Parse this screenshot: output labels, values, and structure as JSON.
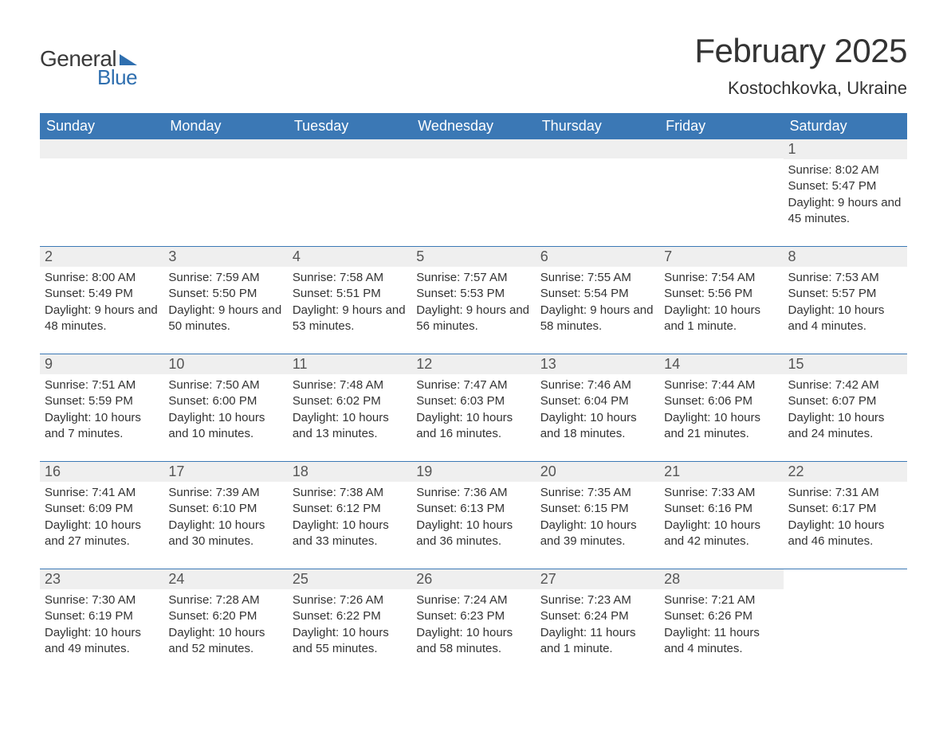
{
  "logo": {
    "word1": "General",
    "word2": "Blue"
  },
  "title": "February 2025",
  "location": "Kostochkovka, Ukraine",
  "colors": {
    "header_bg": "#3b78b5",
    "header_text": "#ffffff",
    "daynum_bg": "#efefef",
    "daynum_text": "#555555",
    "body_text": "#333333",
    "row_divider": "#3b78b5",
    "logo_blue": "#2f6faf",
    "page_bg": "#ffffff"
  },
  "typography": {
    "title_fontsize": 42,
    "location_fontsize": 22,
    "dayhead_fontsize": 18,
    "daynum_fontsize": 18,
    "cell_fontsize": 15
  },
  "layout": {
    "columns": 7,
    "rows": 5
  },
  "day_headers": [
    "Sunday",
    "Monday",
    "Tuesday",
    "Wednesday",
    "Thursday",
    "Friday",
    "Saturday"
  ],
  "weeks": [
    [
      null,
      null,
      null,
      null,
      null,
      null,
      {
        "n": "1",
        "sunrise": "Sunrise: 8:02 AM",
        "sunset": "Sunset: 5:47 PM",
        "daylight": "Daylight: 9 hours and 45 minutes."
      }
    ],
    [
      {
        "n": "2",
        "sunrise": "Sunrise: 8:00 AM",
        "sunset": "Sunset: 5:49 PM",
        "daylight": "Daylight: 9 hours and 48 minutes."
      },
      {
        "n": "3",
        "sunrise": "Sunrise: 7:59 AM",
        "sunset": "Sunset: 5:50 PM",
        "daylight": "Daylight: 9 hours and 50 minutes."
      },
      {
        "n": "4",
        "sunrise": "Sunrise: 7:58 AM",
        "sunset": "Sunset: 5:51 PM",
        "daylight": "Daylight: 9 hours and 53 minutes."
      },
      {
        "n": "5",
        "sunrise": "Sunrise: 7:57 AM",
        "sunset": "Sunset: 5:53 PM",
        "daylight": "Daylight: 9 hours and 56 minutes."
      },
      {
        "n": "6",
        "sunrise": "Sunrise: 7:55 AM",
        "sunset": "Sunset: 5:54 PM",
        "daylight": "Daylight: 9 hours and 58 minutes."
      },
      {
        "n": "7",
        "sunrise": "Sunrise: 7:54 AM",
        "sunset": "Sunset: 5:56 PM",
        "daylight": "Daylight: 10 hours and 1 minute."
      },
      {
        "n": "8",
        "sunrise": "Sunrise: 7:53 AM",
        "sunset": "Sunset: 5:57 PM",
        "daylight": "Daylight: 10 hours and 4 minutes."
      }
    ],
    [
      {
        "n": "9",
        "sunrise": "Sunrise: 7:51 AM",
        "sunset": "Sunset: 5:59 PM",
        "daylight": "Daylight: 10 hours and 7 minutes."
      },
      {
        "n": "10",
        "sunrise": "Sunrise: 7:50 AM",
        "sunset": "Sunset: 6:00 PM",
        "daylight": "Daylight: 10 hours and 10 minutes."
      },
      {
        "n": "11",
        "sunrise": "Sunrise: 7:48 AM",
        "sunset": "Sunset: 6:02 PM",
        "daylight": "Daylight: 10 hours and 13 minutes."
      },
      {
        "n": "12",
        "sunrise": "Sunrise: 7:47 AM",
        "sunset": "Sunset: 6:03 PM",
        "daylight": "Daylight: 10 hours and 16 minutes."
      },
      {
        "n": "13",
        "sunrise": "Sunrise: 7:46 AM",
        "sunset": "Sunset: 6:04 PM",
        "daylight": "Daylight: 10 hours and 18 minutes."
      },
      {
        "n": "14",
        "sunrise": "Sunrise: 7:44 AM",
        "sunset": "Sunset: 6:06 PM",
        "daylight": "Daylight: 10 hours and 21 minutes."
      },
      {
        "n": "15",
        "sunrise": "Sunrise: 7:42 AM",
        "sunset": "Sunset: 6:07 PM",
        "daylight": "Daylight: 10 hours and 24 minutes."
      }
    ],
    [
      {
        "n": "16",
        "sunrise": "Sunrise: 7:41 AM",
        "sunset": "Sunset: 6:09 PM",
        "daylight": "Daylight: 10 hours and 27 minutes."
      },
      {
        "n": "17",
        "sunrise": "Sunrise: 7:39 AM",
        "sunset": "Sunset: 6:10 PM",
        "daylight": "Daylight: 10 hours and 30 minutes."
      },
      {
        "n": "18",
        "sunrise": "Sunrise: 7:38 AM",
        "sunset": "Sunset: 6:12 PM",
        "daylight": "Daylight: 10 hours and 33 minutes."
      },
      {
        "n": "19",
        "sunrise": "Sunrise: 7:36 AM",
        "sunset": "Sunset: 6:13 PM",
        "daylight": "Daylight: 10 hours and 36 minutes."
      },
      {
        "n": "20",
        "sunrise": "Sunrise: 7:35 AM",
        "sunset": "Sunset: 6:15 PM",
        "daylight": "Daylight: 10 hours and 39 minutes."
      },
      {
        "n": "21",
        "sunrise": "Sunrise: 7:33 AM",
        "sunset": "Sunset: 6:16 PM",
        "daylight": "Daylight: 10 hours and 42 minutes."
      },
      {
        "n": "22",
        "sunrise": "Sunrise: 7:31 AM",
        "sunset": "Sunset: 6:17 PM",
        "daylight": "Daylight: 10 hours and 46 minutes."
      }
    ],
    [
      {
        "n": "23",
        "sunrise": "Sunrise: 7:30 AM",
        "sunset": "Sunset: 6:19 PM",
        "daylight": "Daylight: 10 hours and 49 minutes."
      },
      {
        "n": "24",
        "sunrise": "Sunrise: 7:28 AM",
        "sunset": "Sunset: 6:20 PM",
        "daylight": "Daylight: 10 hours and 52 minutes."
      },
      {
        "n": "25",
        "sunrise": "Sunrise: 7:26 AM",
        "sunset": "Sunset: 6:22 PM",
        "daylight": "Daylight: 10 hours and 55 minutes."
      },
      {
        "n": "26",
        "sunrise": "Sunrise: 7:24 AM",
        "sunset": "Sunset: 6:23 PM",
        "daylight": "Daylight: 10 hours and 58 minutes."
      },
      {
        "n": "27",
        "sunrise": "Sunrise: 7:23 AM",
        "sunset": "Sunset: 6:24 PM",
        "daylight": "Daylight: 11 hours and 1 minute."
      },
      {
        "n": "28",
        "sunrise": "Sunrise: 7:21 AM",
        "sunset": "Sunset: 6:26 PM",
        "daylight": "Daylight: 11 hours and 4 minutes."
      },
      null
    ]
  ]
}
